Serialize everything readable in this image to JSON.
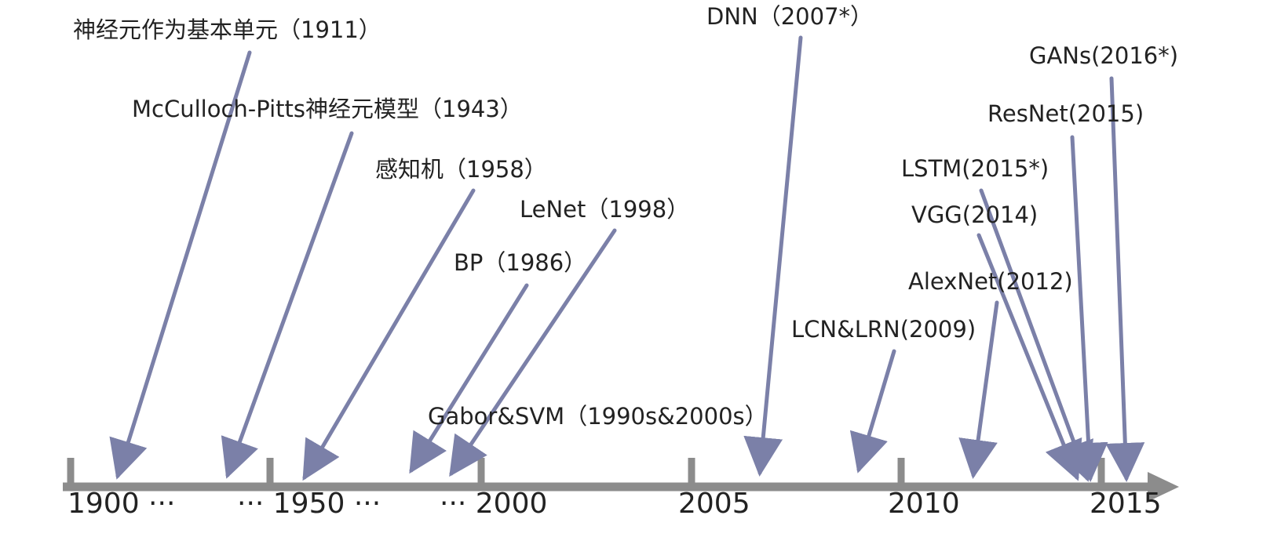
{
  "colors": {
    "axis": "#8c8c8c",
    "arrow": "#7b80a8",
    "text": "#222222"
  },
  "axis": {
    "ticks": [
      {
        "id": "1900",
        "label": "1900 ···"
      },
      {
        "id": "1950",
        "label": "··· 1950 ···"
      },
      {
        "id": "2000",
        "label": "··· 2000"
      },
      {
        "id": "2005",
        "label": "2005"
      },
      {
        "id": "2010",
        "label": "2010"
      },
      {
        "id": "2015",
        "label": "2015"
      }
    ]
  },
  "events": [
    {
      "id": "neuron-unit",
      "label": "神经元作为基本单元（1911）"
    },
    {
      "id": "mcculloch-pitts",
      "label": "McCulloch-Pitts神经元模型（1943）"
    },
    {
      "id": "perceptron",
      "label": "感知机（1958）"
    },
    {
      "id": "lenet",
      "label": "LeNet（1998）"
    },
    {
      "id": "bp",
      "label": "BP（1986）"
    },
    {
      "id": "gabor-svm",
      "label": "Gabor&SVM（1990s&2000s）"
    },
    {
      "id": "dnn",
      "label": "DNN（2007*）"
    },
    {
      "id": "lcn-lrn",
      "label": "LCN&LRN(2009)"
    },
    {
      "id": "alexnet",
      "label": "AlexNet(2012)"
    },
    {
      "id": "vgg",
      "label": "VGG(2014)"
    },
    {
      "id": "lstm",
      "label": "LSTM(2015*)"
    },
    {
      "id": "resnet",
      "label": "ResNet(2015)"
    },
    {
      "id": "gans",
      "label": "GANs(2016*)"
    }
  ]
}
